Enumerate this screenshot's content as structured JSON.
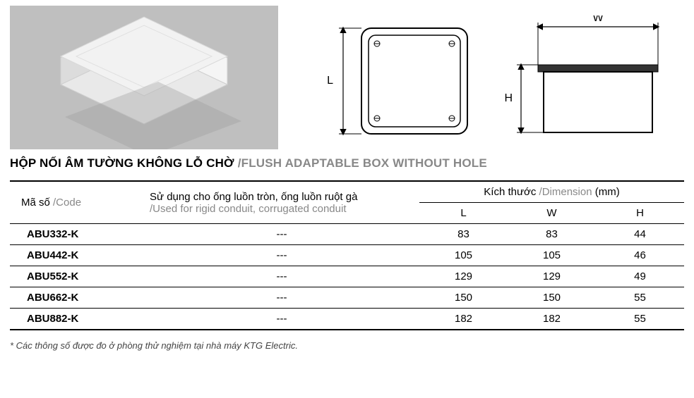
{
  "title": {
    "vn": "HỘP NỐI ÂM TƯỜNG KHÔNG LỖ CHỜ ",
    "en": "/FLUSH ADAPTABLE BOX WITHOUT HOLE"
  },
  "headers": {
    "code": {
      "vn": "Mã số ",
      "en": "/Code"
    },
    "usage": {
      "vn": "Sử dụng cho ống luồn tròn, ống luồn ruột gà",
      "en": "/Used for rigid conduit, corrugated conduit"
    },
    "dim_group": {
      "vn": "Kích thước ",
      "en": "/Dimension ",
      "unit": "(mm)"
    },
    "L": "L",
    "W": "W",
    "H": "H"
  },
  "rows": [
    {
      "code": "ABU332-K",
      "usage": "---",
      "L": "83",
      "W": "83",
      "H": "44"
    },
    {
      "code": "ABU442-K",
      "usage": "---",
      "L": "105",
      "W": "105",
      "H": "46"
    },
    {
      "code": "ABU552-K",
      "usage": "---",
      "L": "129",
      "W": "129",
      "H": "49"
    },
    {
      "code": "ABU662-K",
      "usage": "---",
      "L": "150",
      "W": "150",
      "H": "55"
    },
    {
      "code": "ABU882-K",
      "usage": "---",
      "L": "182",
      "W": "182",
      "H": "55"
    }
  ],
  "footnote": "* Các thông số được đo ở phòng thử nghiệm tại nhà máy KTG Electric.",
  "diagram": {
    "L_label": "L",
    "W_label": "W",
    "H_label": "H"
  },
  "style": {
    "photo_bg": "#bfbfbf",
    "box_fill": "#f2f2f2",
    "box_stroke": "#d9d9d9",
    "diagram_stroke": "#000000",
    "en_color": "#888888",
    "border_color": "#000000"
  }
}
